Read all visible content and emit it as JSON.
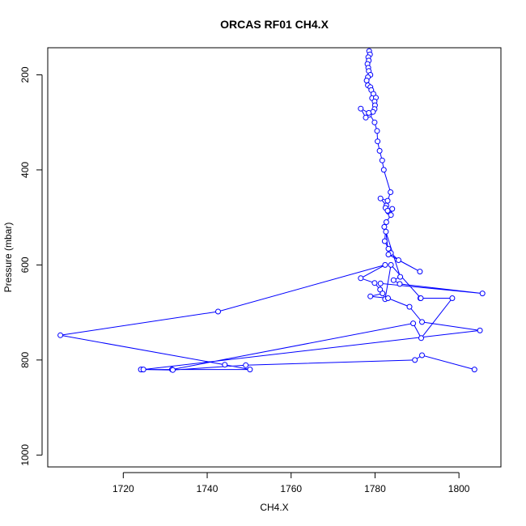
{
  "chart_data": {
    "type": "line",
    "title": "ORCAS RF01 CH4.X",
    "xlabel": "CH4.X",
    "ylabel": "Pressure (mbar)",
    "xlim": [
      1702,
      1810
    ],
    "ylim": [
      1025,
      143
    ],
    "y_reversed": true,
    "grid": false,
    "x_ticks": [
      1720,
      1740,
      1760,
      1780,
      1800
    ],
    "y_ticks": [
      200,
      400,
      600,
      800,
      1000
    ],
    "series": [
      {
        "color": "#0000ff",
        "marker": "open-circle",
        "x": [
          1778.6,
          1778.8,
          1778.4,
          1778.5,
          1778.2,
          1778.4,
          1778.5,
          1778.9,
          1778.3,
          1778.0,
          1778.3,
          1778.9,
          1779.1,
          1779.6,
          1779.3,
          1780.2,
          1779.9,
          1780.0,
          1779.9,
          1779.5,
          1778.6,
          1777.8,
          1776.6,
          1778.5,
          1779.9,
          1780.5,
          1780.6,
          1781.1,
          1781.7,
          1782.1,
          1783.7,
          1783.0,
          1781.3,
          1782.7,
          1782.5,
          1783.2,
          1783.0,
          1784.1,
          1783.8,
          1782.7,
          1782.3,
          1783.2,
          1783.8,
          1785.6,
          1790.7,
          1783.2,
          1782.6,
          1782.2,
          1786.0,
          1784.4,
          1785.9,
          1805.6,
          1781.3,
          1781.2,
          1779.9,
          1776.6,
          1782.4,
          1742.6,
          1705.0,
          1744.2,
          1750.2,
          1724.4,
          1724.2,
          1731.6,
          1789.1,
          1791.0,
          1798.4,
          1790.8,
          1790.9,
          1783.8,
          1782.4,
          1781.8,
          1778.9,
          1783.1,
          1788.2,
          1791.2,
          1805.0,
          1724.8,
          1731.8,
          1749.2,
          1789.5,
          1791.2,
          1803.7
        ],
        "y": [
          150,
          157,
          163,
          170,
          177,
          185,
          192,
          200,
          205,
          212,
          222,
          226,
          232,
          240,
          249,
          248,
          256,
          264,
          272,
          278,
          284,
          290,
          271,
          280,
          300,
          318,
          340,
          360,
          380,
          400,
          447,
          465,
          460,
          475,
          480,
          488,
          486,
          482,
          495,
          510,
          550,
          566,
          575,
          590,
          614,
          578,
          530,
          520,
          625,
          632,
          640,
          660,
          639,
          652,
          638,
          628,
          600,
          698,
          748,
          810,
          820,
          820,
          820,
          820,
          723,
          754,
          670,
          670,
          670,
          600,
          672,
          660,
          666,
          670,
          688,
          720,
          738,
          820,
          821,
          811,
          800,
          790,
          820
        ]
      }
    ]
  }
}
